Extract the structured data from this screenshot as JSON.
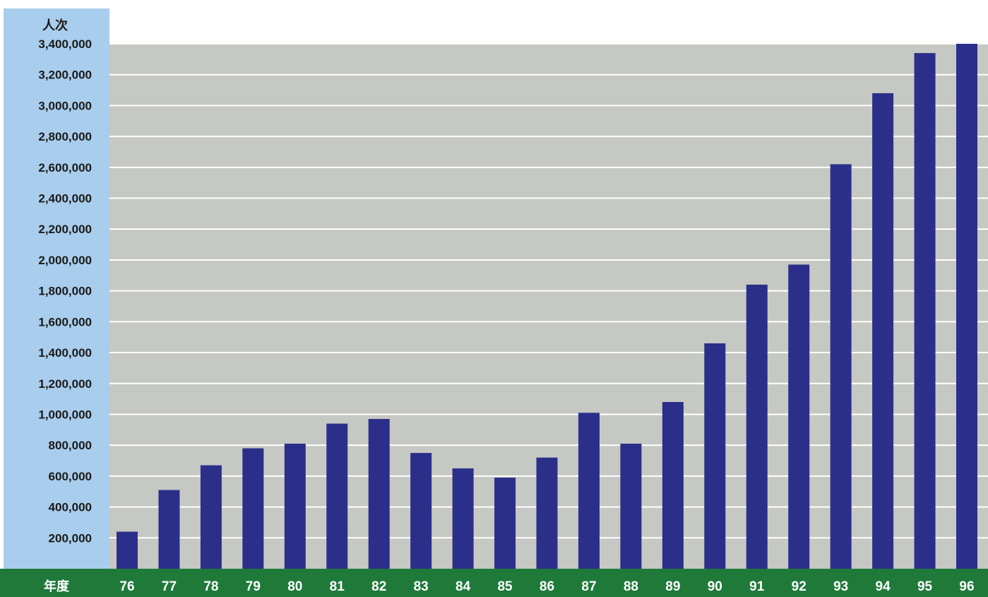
{
  "chart_data": {
    "type": "bar",
    "y_unit_label": "人次",
    "x_unit_label": "年度",
    "categories": [
      "76",
      "77",
      "78",
      "79",
      "80",
      "81",
      "82",
      "83",
      "84",
      "85",
      "86",
      "87",
      "88",
      "89",
      "90",
      "91",
      "92",
      "93",
      "94",
      "95",
      "96"
    ],
    "values": [
      240000,
      510000,
      670000,
      780000,
      810000,
      940000,
      970000,
      750000,
      650000,
      590000,
      720000,
      1010000,
      810000,
      1080000,
      1460000,
      1840000,
      1970000,
      2620000,
      3080000,
      3340000,
      3400000
    ],
    "y_ticks": [
      "200,000",
      "400,000",
      "600,000",
      "800,000",
      "1,000,000",
      "1,200,000",
      "1,400,000",
      "1,600,000",
      "1,800,000",
      "2,000,000",
      "2,200,000",
      "2,400,000",
      "2,600,000",
      "2,800,000",
      "3,000,000",
      "3,200,000",
      "3,400,000"
    ],
    "ylim": [
      0,
      3400000
    ],
    "grid": true,
    "legend": "none",
    "colors": {
      "bar": "#2b2f8a",
      "plot_background": "#c6c8c3",
      "gridline": "#ffffff",
      "y_axis_band": "#a9cdec",
      "x_axis_band": "#1f7a3a",
      "x_tick_text": "#ffffff",
      "y_tick_text": "#1a1a1a"
    }
  }
}
